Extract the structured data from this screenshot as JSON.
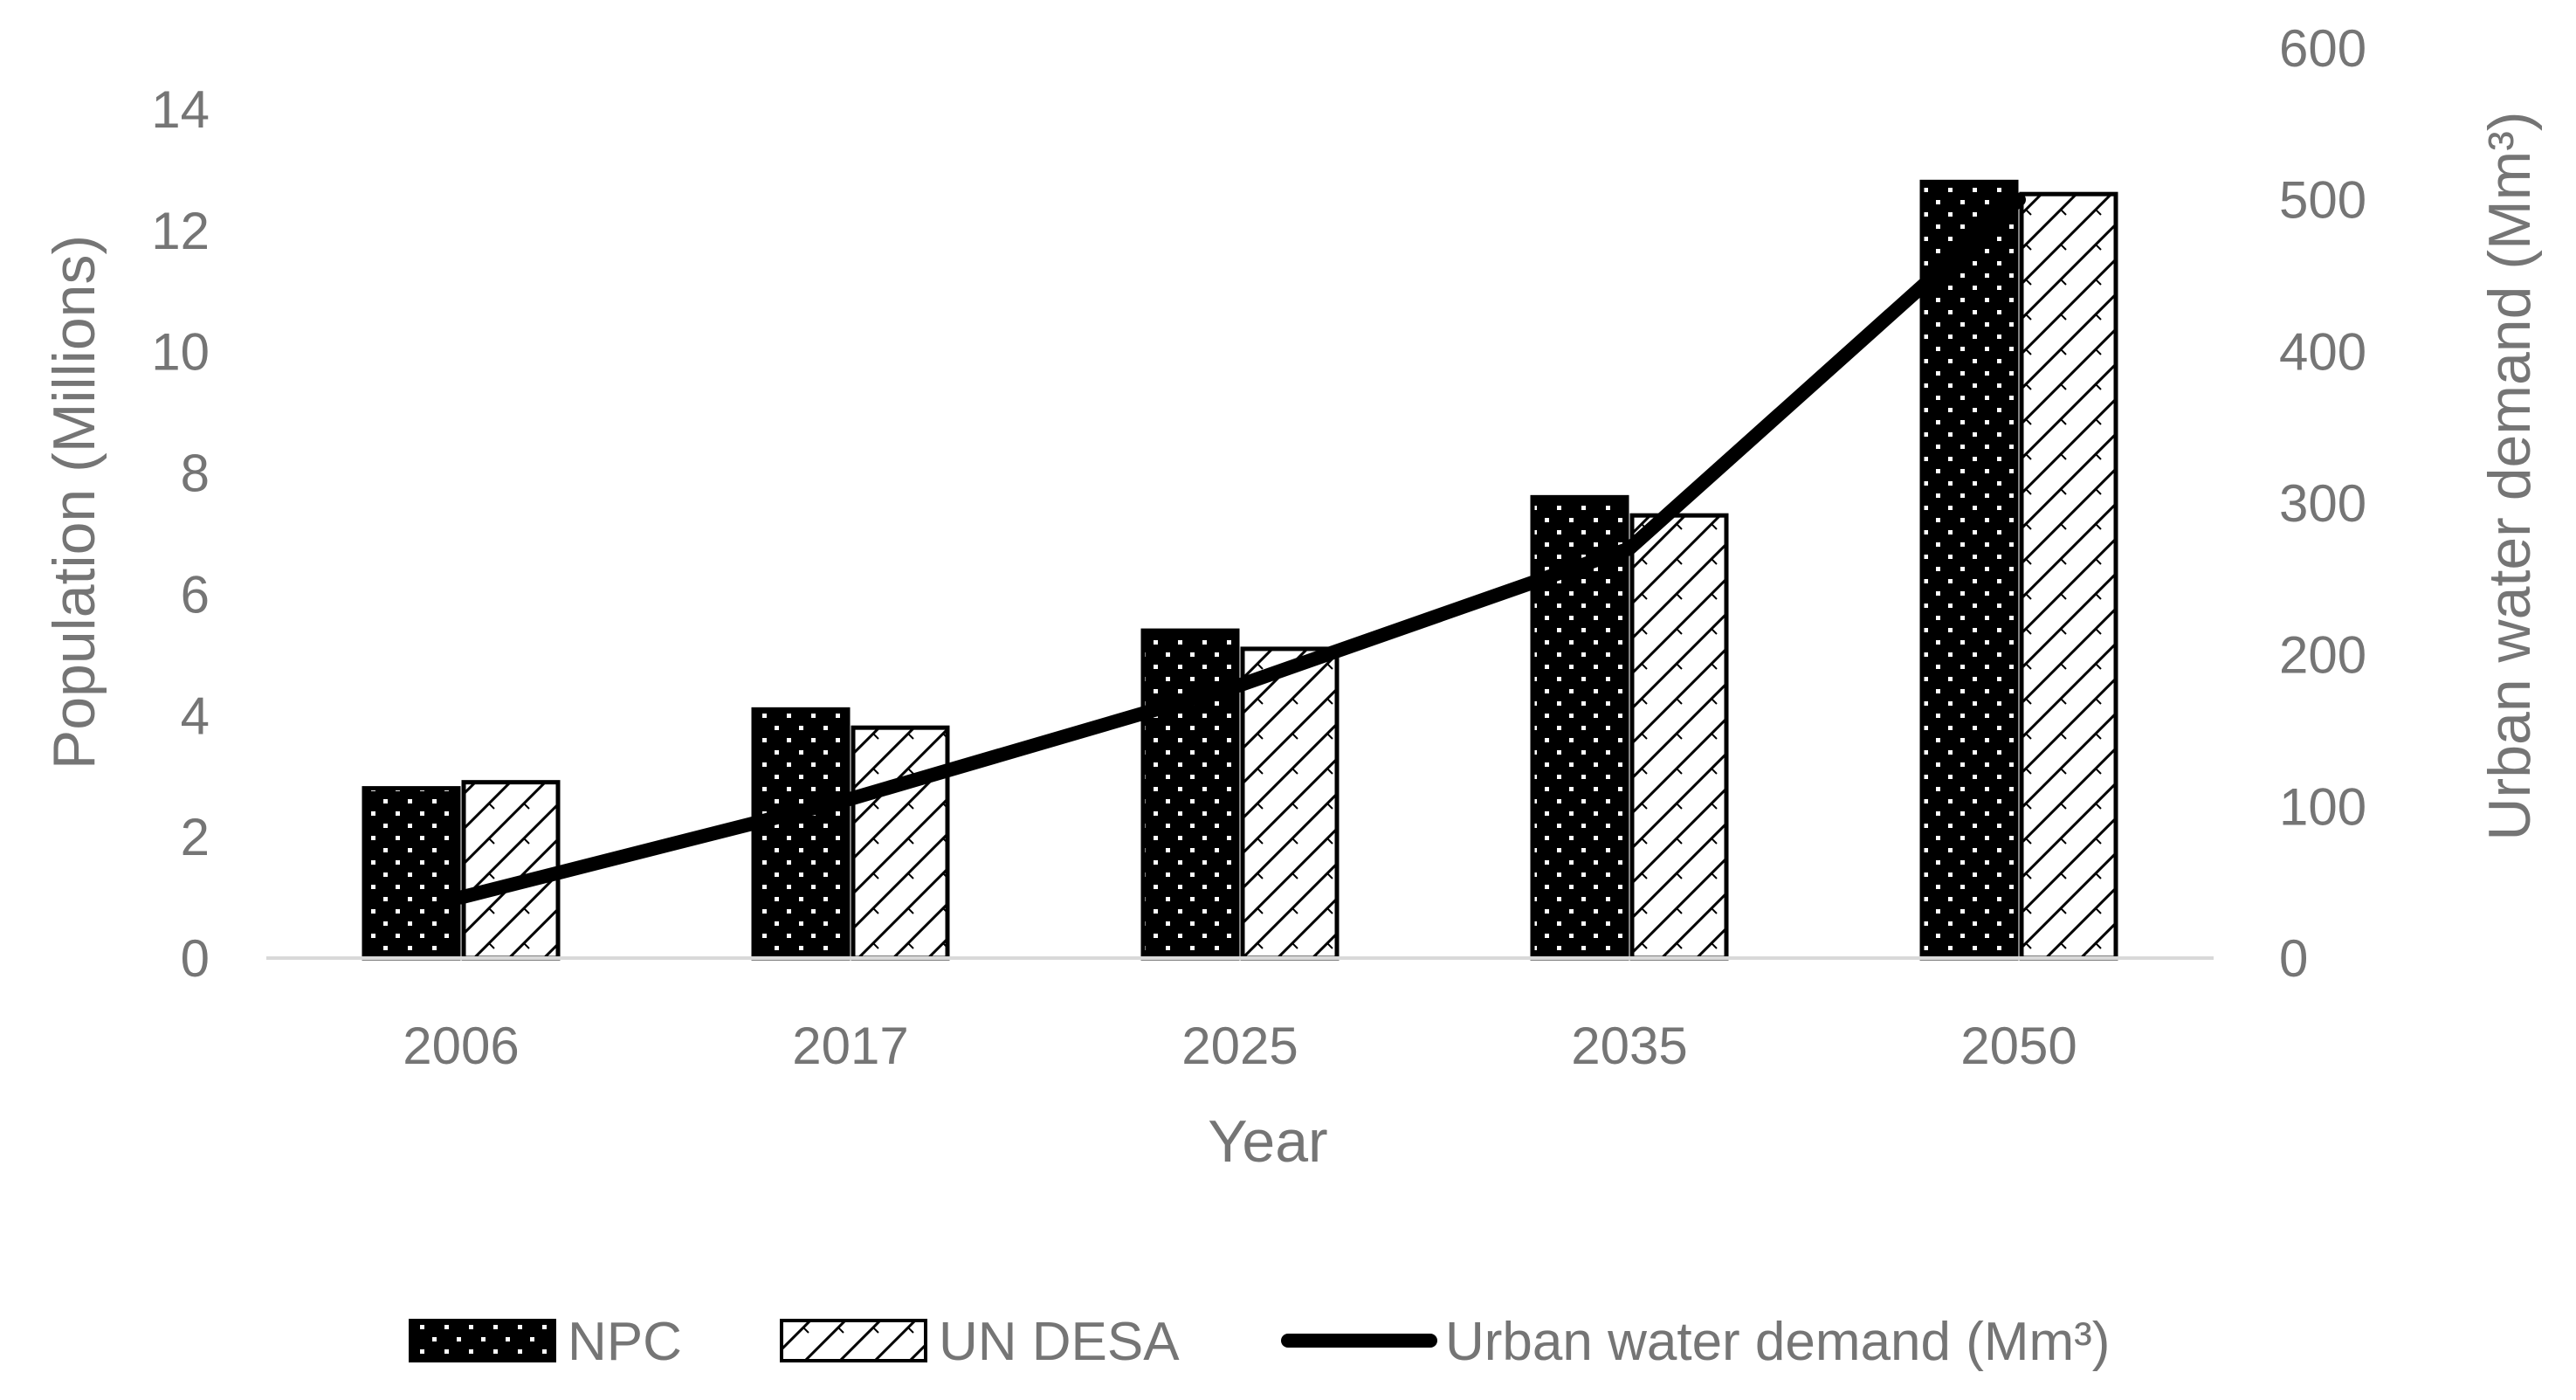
{
  "chart_data": {
    "type": "bar",
    "categories": [
      "2006",
      "2017",
      "2025",
      "2035",
      "2050"
    ],
    "series": [
      {
        "name": "NPC",
        "type": "bar",
        "axis": "left",
        "pattern": "dots",
        "values": [
          2.8,
          4.1,
          5.4,
          7.6,
          12.8
        ]
      },
      {
        "name": "UN DESA",
        "type": "bar",
        "axis": "left",
        "pattern": "hatch",
        "values": [
          2.9,
          3.8,
          5.1,
          7.3,
          12.6
        ]
      },
      {
        "name": "Urban water demand (Mm³)",
        "type": "line",
        "axis": "right",
        "values": [
          40,
          105,
          180,
          270,
          500
        ]
      }
    ],
    "xlabel": "Year",
    "ylabel": "Population (Millions)",
    "y2label": "Urban water demand (Mm³)",
    "ylim": [
      0,
      14
    ],
    "yticks": [
      0,
      2,
      4,
      6,
      8,
      10,
      12,
      14
    ],
    "y2lim": [
      0,
      600
    ],
    "y2ticks": [
      0,
      100,
      200,
      300,
      400,
      500,
      600
    ],
    "legend_position": "bottom",
    "grid": false
  },
  "colors": {
    "text": "#757575",
    "bar": "#000000",
    "line": "#000000",
    "axis": "#d9d9d9"
  }
}
